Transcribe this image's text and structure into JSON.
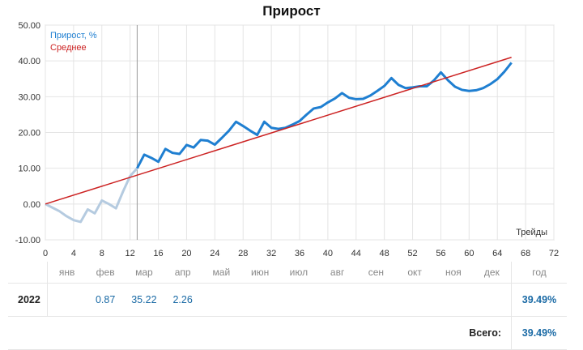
{
  "title": "Прирост",
  "chart_data": {
    "type": "line",
    "title": "Прирост",
    "xlabel": "Трейды",
    "ylabel": "",
    "xlim": [
      0,
      72
    ],
    "ylim": [
      -10,
      50
    ],
    "x_ticks": [
      "0",
      "4",
      "8",
      "12",
      "16",
      "20",
      "24",
      "28",
      "32",
      "36",
      "40",
      "44",
      "48",
      "52",
      "56",
      "60",
      "64",
      "68",
      "72"
    ],
    "y_ticks": [
      "-10.00",
      "0.00",
      "10.00",
      "20.00",
      "30.00",
      "40.00",
      "50.00"
    ],
    "grid": true,
    "legend_position": "top-left",
    "marker_x": 13,
    "series": [
      {
        "name": "Прирост, %",
        "color": "#1f7fd1",
        "pre_marker_color": "#b5cbe0",
        "x": [
          0,
          1,
          2,
          3,
          4,
          5,
          6,
          7,
          8,
          9,
          10,
          11,
          12,
          13,
          14,
          15,
          16,
          17,
          18,
          19,
          20,
          21,
          22,
          23,
          24,
          25,
          26,
          27,
          28,
          29,
          30,
          31,
          32,
          33,
          34,
          35,
          36,
          37,
          38,
          39,
          40,
          41,
          42,
          43,
          44,
          45,
          46,
          47,
          48,
          49,
          50,
          51,
          52,
          53,
          54,
          55,
          56,
          57,
          58,
          59,
          60,
          61,
          62,
          63,
          64,
          65,
          66
        ],
        "values": [
          0.0,
          -1.0,
          -2.0,
          -3.4,
          -4.5,
          -5.0,
          -1.5,
          -2.6,
          1.0,
          0.0,
          -1.2,
          3.5,
          7.8,
          10.0,
          13.8,
          12.9,
          11.8,
          15.4,
          14.3,
          14.0,
          16.5,
          15.8,
          17.9,
          17.7,
          16.6,
          18.5,
          20.5,
          23.0,
          21.8,
          20.5,
          19.3,
          23.0,
          21.3,
          21.0,
          21.3,
          22.2,
          23.2,
          25.0,
          26.7,
          27.1,
          28.4,
          29.5,
          31.0,
          29.7,
          29.3,
          29.4,
          30.3,
          31.6,
          33.0,
          35.2,
          33.3,
          32.4,
          32.6,
          32.9,
          32.9,
          34.5,
          36.8,
          34.6,
          32.8,
          31.9,
          31.6,
          31.8,
          32.4,
          33.5,
          34.9,
          37.0,
          39.5
        ]
      },
      {
        "name": "Среднее",
        "color": "#cc2222",
        "x": [
          0,
          66
        ],
        "values": [
          0.0,
          41.0
        ]
      }
    ]
  },
  "table": {
    "months": [
      "янв",
      "фев",
      "мар",
      "апр",
      "май",
      "июн",
      "июл",
      "авг",
      "сен",
      "окт",
      "ноя",
      "дек"
    ],
    "year_header": "год",
    "rows": [
      {
        "year": "2022",
        "cells": [
          "",
          "0.87",
          "35.22",
          "2.26",
          "",
          "",
          "",
          "",
          "",
          "",
          "",
          ""
        ],
        "total": "39.49%"
      }
    ],
    "total_label": "Всего:",
    "total_value": "39.49%"
  }
}
